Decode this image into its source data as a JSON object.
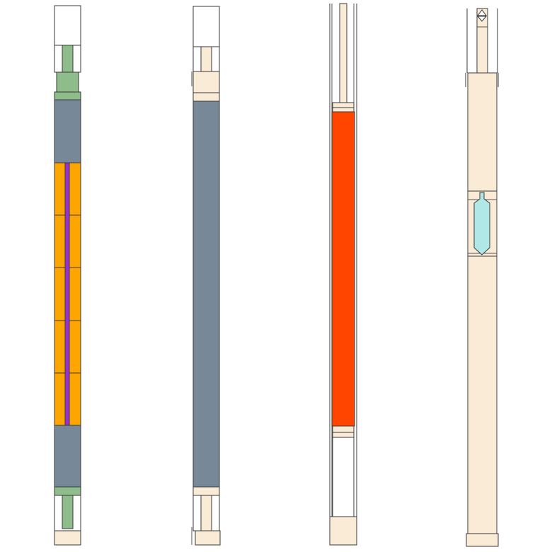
{
  "colors": {
    "background": "#ffffff",
    "outline": "#3a3a3a",
    "thin_line": "#555555",
    "cladding_green": "#8fbc8b",
    "moderator_slate": "#778899",
    "fuel_orange": "#ffa500",
    "central_rod_purple": "#9932cc",
    "heater_red": "#ff4500",
    "structure_linen": "#faebd7",
    "capsule_cyan": "#b0e8e8",
    "empty_white": "#ffffff"
  },
  "assemblies": [
    {
      "id": "fuel-assembly",
      "sections": [
        "end-cap-top",
        "green-plug-top",
        "moderator-top",
        "fuel-stack-5-pellets",
        "moderator-bottom",
        "green-plug-bottom",
        "end-cap-bottom"
      ]
    },
    {
      "id": "moderator-assembly",
      "sections": [
        "end-cap-top",
        "linen-plug-top",
        "moderator-column",
        "linen-plug-bottom",
        "end-cap-bottom"
      ]
    },
    {
      "id": "heater-assembly",
      "sections": [
        "guide-tube",
        "spacer-top",
        "heater-element",
        "spacer-bottom",
        "empty-plenum",
        "base"
      ]
    },
    {
      "id": "capsule-assembly",
      "sections": [
        "top-fitting",
        "upper-structure",
        "capsule",
        "lower-structure",
        "base"
      ]
    }
  ]
}
